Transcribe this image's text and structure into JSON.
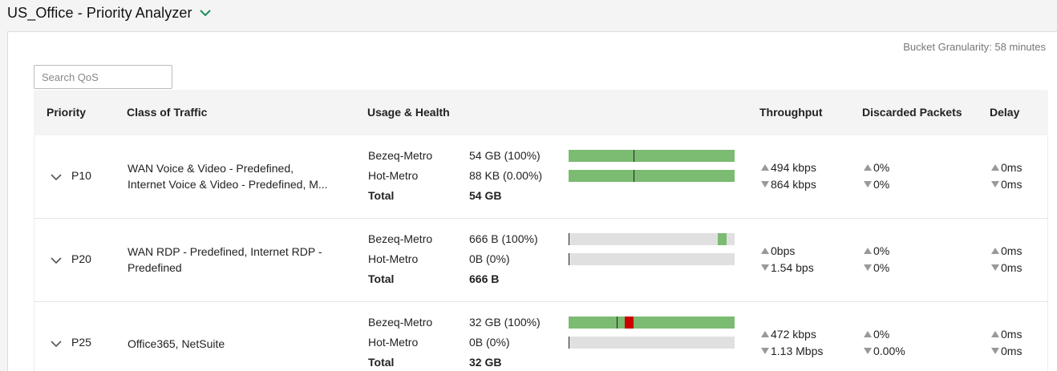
{
  "header": {
    "title": "US_Office - Priority Analyzer"
  },
  "bucket_granularity": "Bucket Granularity: 58 minutes",
  "search": {
    "placeholder": "Search QoS",
    "value": ""
  },
  "columns": {
    "priority": "Priority",
    "class": "Class of Traffic",
    "usage": "Usage & Health",
    "throughput": "Throughput",
    "discarded": "Discarded Packets",
    "delay": "Delay"
  },
  "colors": {
    "green": "#7cbb72",
    "red": "#cc0000",
    "track": "#e0e0e0",
    "accent": "#1a8a5a"
  },
  "rows": [
    {
      "priority": "P10",
      "class_line1": "WAN Voice & Video - Predefined,",
      "class_line2": "Internet Voice & Video - Predefined, M...",
      "links": [
        {
          "name": "Bezeq-Metro",
          "value": "54 GB (100%)",
          "fill": 1.0,
          "marker": 0.39
        },
        {
          "name": "Hot-Metro",
          "value": "88 KB (0.00%)",
          "fill": 1.0,
          "marker": 0.39
        }
      ],
      "total_label": "Total",
      "total": "54 GB",
      "throughput_up": "494 kbps",
      "throughput_down": "864 kbps",
      "discarded_up": "0%",
      "discarded_down": "0%",
      "delay_up": "0ms",
      "delay_down": "0ms"
    },
    {
      "priority": "P20",
      "class_line1": "WAN RDP - Predefined, Internet RDP -",
      "class_line2": "Predefined",
      "links": [
        {
          "name": "Bezeq-Metro",
          "value": "666 B (100%)",
          "fill_start": 0.9,
          "fill_end": 0.95,
          "marker": 0.0
        },
        {
          "name": "Hot-Metro",
          "value": "0B (0%)",
          "marker": 0.0
        }
      ],
      "total_label": "Total",
      "total": "666 B",
      "throughput_up": "0bps",
      "throughput_down": "1.54 bps",
      "discarded_up": "0%",
      "discarded_down": "0%",
      "delay_up": "0ms",
      "delay_down": "0ms"
    },
    {
      "priority": "P25",
      "class_line1": "Office365, NetSuite",
      "class_line2": "",
      "links": [
        {
          "name": "Bezeq-Metro",
          "value": "32 GB (100%)",
          "fill": 1.0,
          "marker": 0.29,
          "spike_start": 0.34,
          "spike_end": 0.39
        },
        {
          "name": "Hot-Metro",
          "value": "0B (0%)",
          "marker": 0.0
        }
      ],
      "total_label": "Total",
      "total": "32 GB",
      "throughput_up": "472 kbps",
      "throughput_down": "1.13 Mbps",
      "discarded_up": "0%",
      "discarded_down": "0.00%",
      "delay_up": "0ms",
      "delay_down": "0ms"
    }
  ]
}
